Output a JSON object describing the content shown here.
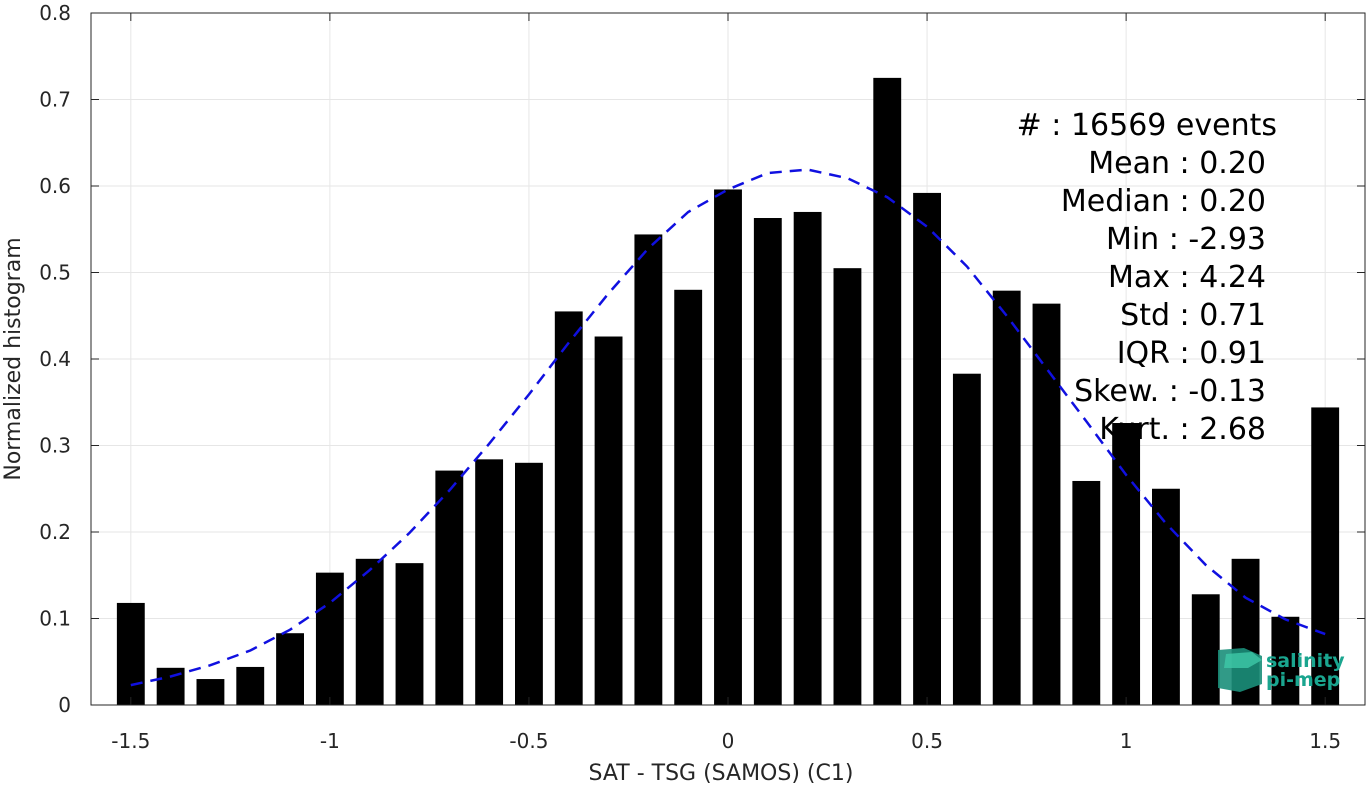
{
  "chart_data": {
    "type": "bar",
    "xlabel": "SAT - TSG (SAMOS) (C1)",
    "ylabel": "Normalized histogram",
    "xlim": [
      -1.6,
      1.6
    ],
    "ylim": [
      0,
      0.8
    ],
    "xticks": [
      -1.5,
      -1,
      -0.5,
      0,
      0.5,
      1,
      1.5
    ],
    "xtick_labels": [
      "-1.5",
      "-1",
      "-0.5",
      "0",
      "0.5",
      "1",
      "1.5"
    ],
    "yticks": [
      0,
      0.1,
      0.2,
      0.3,
      0.4,
      0.5,
      0.6,
      0.7,
      0.8
    ],
    "ytick_labels": [
      "0",
      "0.1",
      "0.2",
      "0.3",
      "0.4",
      "0.5",
      "0.6",
      "0.7",
      "0.8"
    ],
    "grid": true,
    "bar_color": "#000000",
    "bar_width": 0.07,
    "bins": [
      -1.5,
      -1.4,
      -1.3,
      -1.2,
      -1.1,
      -1.0,
      -0.9,
      -0.8,
      -0.7,
      -0.6,
      -0.5,
      -0.4,
      -0.3,
      -0.2,
      -0.1,
      0.0,
      0.1,
      0.2,
      0.3,
      0.4,
      0.5,
      0.6,
      0.7,
      0.8,
      0.9,
      1.0,
      1.1,
      1.2,
      1.3,
      1.4,
      1.5
    ],
    "values": [
      0.118,
      0.043,
      0.03,
      0.044,
      0.083,
      0.153,
      0.169,
      0.164,
      0.271,
      0.284,
      0.28,
      0.455,
      0.426,
      0.544,
      0.48,
      0.596,
      0.563,
      0.57,
      0.505,
      0.725,
      0.592,
      0.383,
      0.479,
      0.464,
      0.259,
      0.326,
      0.25,
      0.128,
      0.169,
      0.102,
      0.344
    ],
    "fit_curve": {
      "style": "dashed",
      "color": "#1010e0",
      "x": [
        -1.5,
        -1.4,
        -1.3,
        -1.2,
        -1.1,
        -1.0,
        -0.9,
        -0.8,
        -0.7,
        -0.6,
        -0.5,
        -0.4,
        -0.3,
        -0.2,
        -0.1,
        0.0,
        0.1,
        0.2,
        0.3,
        0.4,
        0.5,
        0.6,
        0.7,
        0.8,
        0.9,
        1.0,
        1.1,
        1.2,
        1.3,
        1.4,
        1.5
      ],
      "y": [
        0.023,
        0.033,
        0.046,
        0.063,
        0.087,
        0.118,
        0.156,
        0.199,
        0.248,
        0.302,
        0.359,
        0.419,
        0.476,
        0.528,
        0.57,
        0.596,
        0.615,
        0.619,
        0.609,
        0.587,
        0.553,
        0.507,
        0.45,
        0.389,
        0.328,
        0.266,
        0.21,
        0.162,
        0.124,
        0.099,
        0.082
      ]
    },
    "annotations": [
      "#  : 16569 events",
      "Mean : 0.20",
      "Median : 0.20",
      "Min : -2.93",
      "Max : 4.24",
      "Std : 0.71",
      "IQR : 0.91",
      "Skew. : -0.13",
      "Kurt. : 2.68"
    ]
  },
  "logo": {
    "line1": "salinity",
    "line2": "pi-mep",
    "color": "#1aa58f"
  }
}
